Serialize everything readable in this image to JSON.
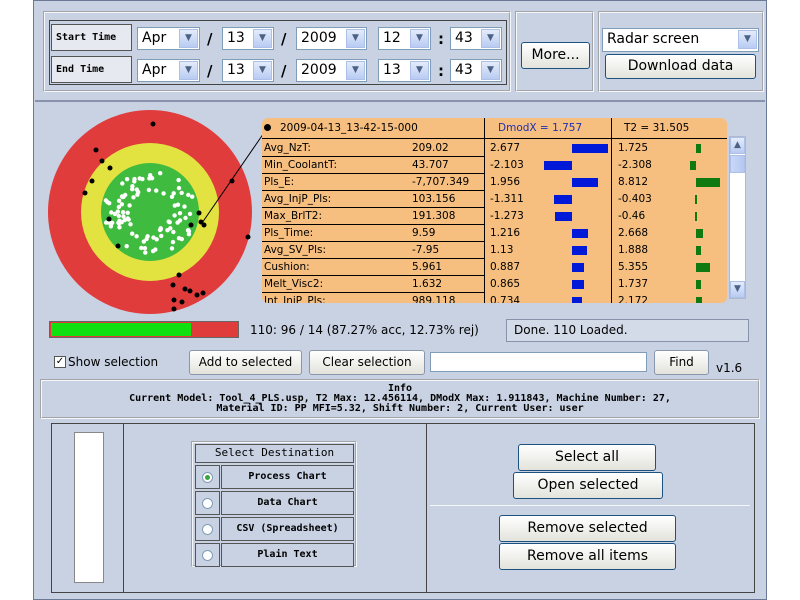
{
  "time": {
    "start_label": "Start Time",
    "end_label": "End Time",
    "start": {
      "month": "Apr",
      "day": "13",
      "year": "2009",
      "hour": "12",
      "minute": "43"
    },
    "end": {
      "month": "Apr",
      "day": "13",
      "year": "2009",
      "hour": "13",
      "minute": "43"
    },
    "date_sep": "/",
    "time_sep": ":"
  },
  "more_button": "More...",
  "view_select": "Radar screen",
  "download_button": "Download data",
  "table": {
    "header_id": "2009-04-13_13-42-15-000",
    "header_dmodx": "DmodX = 1.757",
    "header_t2": "T2 = 31.505",
    "rows": [
      {
        "name": "Avg_NzT:",
        "value": "209.02",
        "dmodx": "2.677",
        "t2": "1.725",
        "dbar": 0.9,
        "tbar": 0.12
      },
      {
        "name": "Min_CoolantT:",
        "value": "43.707",
        "dmodx": "-2.103",
        "t2": "-2.308",
        "dbar": -0.7,
        "tbar": -0.16
      },
      {
        "name": "Pls_E:",
        "value": "-7,707.349",
        "dmodx": "1.956",
        "t2": "8.812",
        "dbar": 0.65,
        "tbar": 0.6
      },
      {
        "name": "Avg_InjP_Pls:",
        "value": "103.156",
        "dmodx": "-1.311",
        "t2": "-0.403",
        "dbar": -0.44,
        "tbar": -0.03
      },
      {
        "name": "Max_BrlT2:",
        "value": "191.308",
        "dmodx": "-1.273",
        "t2": "-0.46",
        "dbar": -0.42,
        "tbar": -0.03
      },
      {
        "name": "Pls_Time:",
        "value": "9.59",
        "dmodx": "1.216",
        "t2": "2.668",
        "dbar": 0.4,
        "tbar": 0.18
      },
      {
        "name": "Avg_SV_Pls:",
        "value": "-7.95",
        "dmodx": "1.13",
        "t2": "1.888",
        "dbar": 0.38,
        "tbar": 0.13
      },
      {
        "name": "Cushion:",
        "value": "5.961",
        "dmodx": "0.887",
        "t2": "5.355",
        "dbar": 0.3,
        "tbar": 0.36
      },
      {
        "name": "Melt_Visc2:",
        "value": "1.632",
        "dmodx": "0.865",
        "t2": "1.737",
        "dbar": 0.29,
        "tbar": 0.12
      },
      {
        "name": "Int_InjP_Pls:",
        "value": "989.118",
        "dmodx": "0.734",
        "t2": "2.172",
        "dbar": 0.25,
        "tbar": 0.15
      }
    ]
  },
  "progress": {
    "fraction": 0.8727,
    "text": "110: 96 / 14 (87.27% acc, 12.73% rej)",
    "status": "Done. 110 Loaded."
  },
  "show_selection_label": "Show selection",
  "add_selected_button": "Add to selected",
  "clear_selection_button": "Clear selection",
  "find_input_value": "",
  "find_button": "Find",
  "version": "v1.6",
  "info": {
    "title": "Info",
    "line1": "Current Model: Tool_4_PLS.usp, T2 Max: 12.456114, DModX Max: 1.911843, Machine Number: 27,",
    "line2": "Material ID: PP MFI=5.32, Shift Number: 2, Current User: user"
  },
  "destination": {
    "title": "Select Destination",
    "options": [
      "Process Chart",
      "Data Chart",
      "CSV (Spreadsheet)",
      "Plain Text"
    ],
    "selected": 0
  },
  "select_all_button": "Select all",
  "open_selected_button": "Open selected",
  "remove_selected_button": "Remove selected",
  "remove_all_button": "Remove all items",
  "colors": {
    "red": "#e03c3c",
    "yellow": "#e2e241",
    "green": "#3fbb3f",
    "table_bg": "#f6bf80",
    "bar_blue": "#0018d8",
    "bar_green": "#107a10"
  }
}
